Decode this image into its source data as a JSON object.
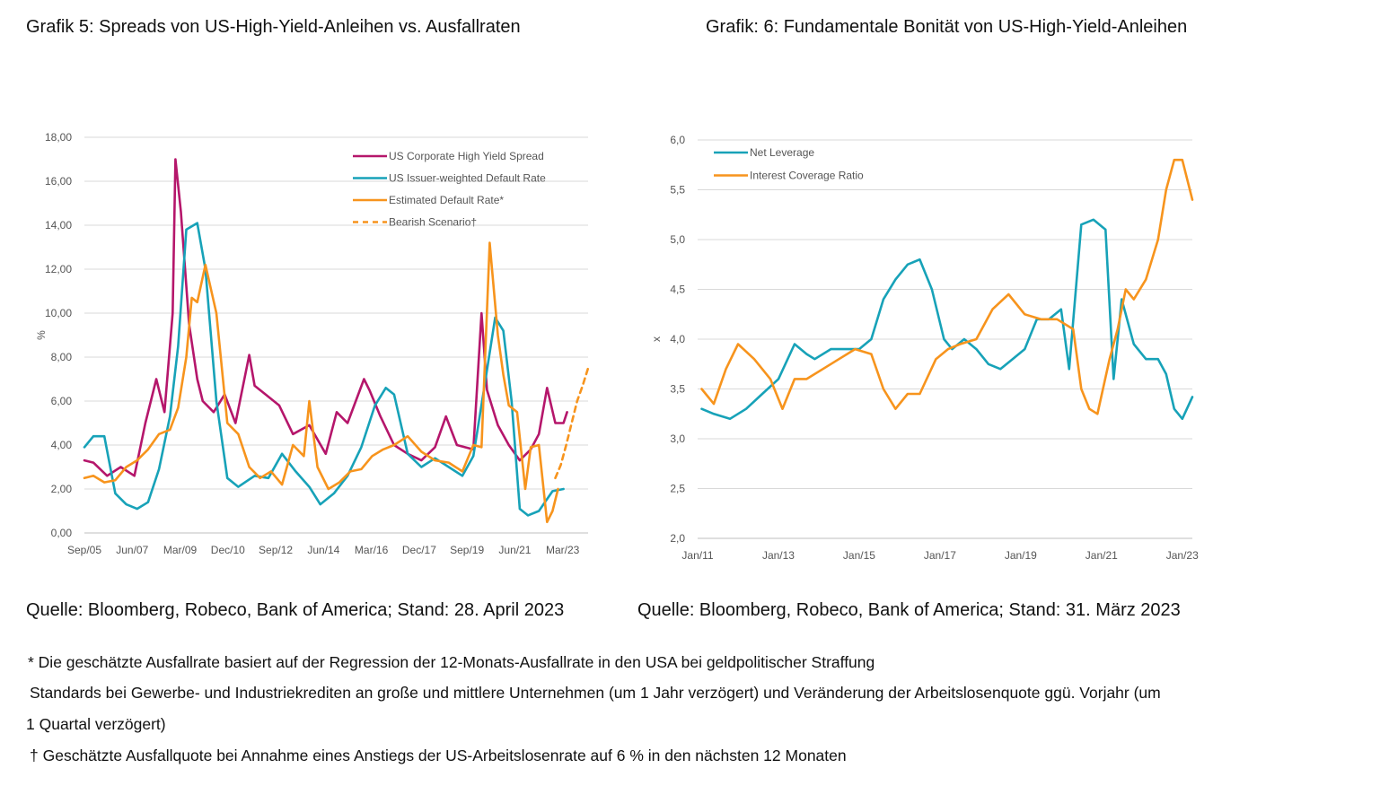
{
  "titles": {
    "left": "Grafik 5: Spreads von US-High-Yield-Anleihen vs. Ausfallraten",
    "right": "Grafik: 6:  Fundamentale Bonität von US-High-Yield-Anleihen"
  },
  "sources": {
    "left": "Quelle: Bloomberg, Robeco, Bank of America; Stand: 28. April 2023",
    "right": "Quelle: Bloomberg, Robeco, Bank of America; Stand: 31. März 2023"
  },
  "footnotes": {
    "line1": "* Die geschätzte Ausfallrate basiert auf der Regression der 12-Monats-Ausfallrate in den USA bei geldpolitischer Straffung",
    "line2": "Standards bei Gewerbe- und Industriekrediten an große und mittlere Unternehmen (um 1 Jahr verzögert) und Veränderung der Arbeitslosenquote ggü. Vorjahr (um",
    "line3": "1 Quartal verzögert)",
    "line4": "† Geschätzte Ausfallquote bei Annahme eines Anstiegs der US-Arbeitslosenrate auf 6 % in den nächsten 12 Monaten"
  },
  "chart_data": [
    {
      "type": "line",
      "ylabel": "%",
      "ylim": [
        0,
        18
      ],
      "y_ticks": [
        "0,00",
        "2,00",
        "4,00",
        "6,00",
        "8,00",
        "10,00",
        "12,00",
        "14,00",
        "16,00",
        "18,00"
      ],
      "x_ticks": [
        "Sep/05",
        "Jun/07",
        "Mar/09",
        "Dec/10",
        "Sep/12",
        "Jun/14",
        "Mar/16",
        "Dec/17",
        "Sep/19",
        "Jun/21",
        "Mar/23"
      ],
      "grid": "horizontal",
      "legend_position": "top-right",
      "series": [
        {
          "name": "US Corporate High Yield Spread",
          "color": "#b5166b",
          "dash": "solid",
          "x": [
            2005.67,
            2006.0,
            2006.5,
            2007.0,
            2007.5,
            2007.9,
            2008.3,
            2008.6,
            2008.9,
            2009.0,
            2009.2,
            2009.5,
            2009.8,
            2010.0,
            2010.4,
            2010.8,
            2011.2,
            2011.7,
            2011.9,
            2012.3,
            2012.8,
            2013.3,
            2013.9,
            2014.5,
            2014.9,
            2015.3,
            2015.9,
            2016.1,
            2016.5,
            2017.0,
            2017.5,
            2018.0,
            2018.5,
            2018.9,
            2019.3,
            2019.9,
            2020.2,
            2020.4,
            2020.8,
            2021.2,
            2021.6,
            2022.0,
            2022.3,
            2022.6,
            2022.9,
            2023.2,
            2023.33
          ],
          "y": [
            3.3,
            3.2,
            2.6,
            3.0,
            2.6,
            5.0,
            7.0,
            5.5,
            10.0,
            17.0,
            14.6,
            9.5,
            7.0,
            6.0,
            5.5,
            6.3,
            5.0,
            8.1,
            6.7,
            6.3,
            5.8,
            4.5,
            4.9,
            3.6,
            5.5,
            5.0,
            7.0,
            6.5,
            5.3,
            4.0,
            3.6,
            3.3,
            3.9,
            5.3,
            4.0,
            3.8,
            10.0,
            6.5,
            4.9,
            4.0,
            3.3,
            3.8,
            4.5,
            6.6,
            5.0,
            5.0,
            5.5
          ]
        },
        {
          "name": "US Issuer-weighted Default Rate",
          "color": "#17a2b8",
          "dash": "solid",
          "x": [
            2005.67,
            2006.0,
            2006.4,
            2006.8,
            2007.2,
            2007.6,
            2008.0,
            2008.4,
            2008.8,
            2009.1,
            2009.4,
            2009.8,
            2010.1,
            2010.5,
            2010.9,
            2011.3,
            2011.9,
            2012.4,
            2012.9,
            2013.4,
            2013.9,
            2014.3,
            2014.8,
            2015.3,
            2015.8,
            2016.3,
            2016.7,
            2017.0,
            2017.5,
            2018.0,
            2018.5,
            2019.0,
            2019.5,
            2019.9,
            2020.3,
            2020.7,
            2021.0,
            2021.3,
            2021.6,
            2021.9,
            2022.3,
            2022.8,
            2023.2
          ],
          "y": [
            3.9,
            4.4,
            4.4,
            1.8,
            1.3,
            1.1,
            1.4,
            2.9,
            5.3,
            8.5,
            13.8,
            14.1,
            12.0,
            6.0,
            2.5,
            2.1,
            2.6,
            2.5,
            3.6,
            2.8,
            2.1,
            1.3,
            1.8,
            2.6,
            3.9,
            5.8,
            6.6,
            6.3,
            3.6,
            3.0,
            3.4,
            3.0,
            2.6,
            3.5,
            6.6,
            9.8,
            9.2,
            6.0,
            1.1,
            0.8,
            1.0,
            1.9,
            2.0
          ]
        },
        {
          "name": "Estimated Default Rate*",
          "color": "#f7941d",
          "dash": "solid",
          "x": [
            2005.67,
            2006.0,
            2006.4,
            2006.8,
            2007.2,
            2007.6,
            2008.0,
            2008.4,
            2008.8,
            2009.1,
            2009.4,
            2009.6,
            2009.8,
            2010.1,
            2010.5,
            2010.9,
            2011.3,
            2011.7,
            2012.1,
            2012.5,
            2012.9,
            2013.3,
            2013.7,
            2013.9,
            2014.2,
            2014.6,
            2015.0,
            2015.4,
            2015.8,
            2016.2,
            2016.6,
            2017.0,
            2017.5,
            2018.0,
            2018.5,
            2019.0,
            2019.5,
            2019.9,
            2020.2,
            2020.5,
            2020.8,
            2021.0,
            2021.2,
            2021.5,
            2021.8,
            2022.0,
            2022.3,
            2022.6,
            2022.8,
            2023.0
          ],
          "y": [
            2.5,
            2.6,
            2.3,
            2.4,
            3.0,
            3.3,
            3.8,
            4.5,
            4.7,
            5.7,
            8.0,
            10.7,
            10.5,
            12.2,
            10.0,
            5.0,
            4.5,
            3.0,
            2.5,
            2.8,
            2.2,
            4.0,
            3.5,
            6.0,
            3.0,
            2.0,
            2.3,
            2.8,
            2.9,
            3.5,
            3.8,
            4.0,
            4.4,
            3.7,
            3.3,
            3.2,
            2.8,
            4.0,
            3.9,
            13.2,
            9.0,
            7.2,
            5.8,
            5.5,
            2.0,
            3.9,
            4.0,
            0.5,
            1.0,
            2.0
          ]
        },
        {
          "name": "Bearish Scenario†",
          "color": "#f7941d",
          "dash": "dashed",
          "x": [
            2022.9,
            2023.1,
            2023.3,
            2023.5,
            2023.7,
            2023.9,
            2024.1
          ],
          "y": [
            2.5,
            3.1,
            4.0,
            5.0,
            6.0,
            6.7,
            7.5
          ]
        }
      ]
    },
    {
      "type": "line",
      "ylabel": "x",
      "ylim": [
        2.0,
        6.0
      ],
      "y_ticks": [
        "2,0",
        "2,5",
        "3,0",
        "3,5",
        "4,0",
        "4,5",
        "5,0",
        "5,5",
        "6,0"
      ],
      "x_ticks": [
        "Jan/11",
        "Jan/13",
        "Jan/15",
        "Jan/17",
        "Jan/19",
        "Jan/21",
        "Jan/23"
      ],
      "grid": "horizontal",
      "legend_position": "top-left",
      "series": [
        {
          "name": "Net Leverage",
          "color": "#17a2b8",
          "dash": "solid",
          "x": [
            2011.1,
            2011.4,
            2011.8,
            2012.2,
            2012.6,
            2013.0,
            2013.4,
            2013.7,
            2013.9,
            2014.3,
            2014.6,
            2015.0,
            2015.3,
            2015.6,
            2015.9,
            2016.2,
            2016.5,
            2016.8,
            2017.1,
            2017.3,
            2017.6,
            2017.9,
            2018.2,
            2018.5,
            2018.8,
            2019.1,
            2019.4,
            2019.7,
            2020.0,
            2020.2,
            2020.5,
            2020.8,
            2021.1,
            2021.3,
            2021.5,
            2021.8,
            2022.1,
            2022.4,
            2022.6,
            2022.8,
            2023.0,
            2023.25
          ],
          "y": [
            3.3,
            3.25,
            3.2,
            3.3,
            3.45,
            3.6,
            3.95,
            3.85,
            3.8,
            3.9,
            3.9,
            3.9,
            4.0,
            4.4,
            4.6,
            4.75,
            4.8,
            4.5,
            4.0,
            3.9,
            4.0,
            3.9,
            3.75,
            3.7,
            3.8,
            3.9,
            4.2,
            4.2,
            4.3,
            3.7,
            5.15,
            5.2,
            5.1,
            3.6,
            4.4,
            3.95,
            3.8,
            3.8,
            3.65,
            3.3,
            3.2,
            3.42
          ]
        },
        {
          "name": "Interest Coverage Ratio",
          "color": "#f7941d",
          "dash": "solid",
          "x": [
            2011.1,
            2011.4,
            2011.7,
            2012.0,
            2012.4,
            2012.8,
            2013.1,
            2013.4,
            2013.7,
            2014.1,
            2014.5,
            2014.9,
            2015.3,
            2015.6,
            2015.9,
            2016.2,
            2016.5,
            2016.9,
            2017.2,
            2017.5,
            2017.9,
            2018.3,
            2018.7,
            2019.1,
            2019.5,
            2019.9,
            2020.3,
            2020.5,
            2020.7,
            2020.9,
            2021.2,
            2021.4,
            2021.6,
            2021.8,
            2022.1,
            2022.4,
            2022.6,
            2022.8,
            2023.0,
            2023.25
          ],
          "y": [
            3.5,
            3.35,
            3.7,
            3.95,
            3.8,
            3.6,
            3.3,
            3.6,
            3.6,
            3.7,
            3.8,
            3.9,
            3.85,
            3.5,
            3.3,
            3.45,
            3.45,
            3.8,
            3.9,
            3.95,
            4.0,
            4.3,
            4.45,
            4.25,
            4.2,
            4.2,
            4.1,
            3.5,
            3.3,
            3.25,
            3.8,
            4.1,
            4.5,
            4.4,
            4.6,
            5.0,
            5.5,
            5.8,
            5.8,
            5.4
          ]
        }
      ]
    }
  ]
}
